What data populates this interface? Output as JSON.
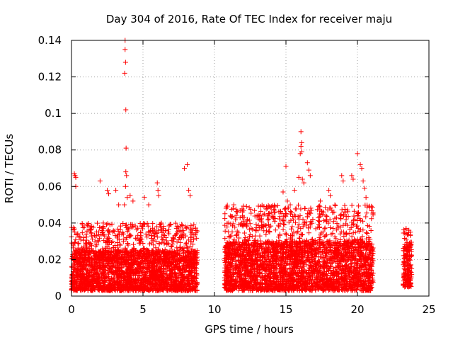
{
  "chart_data": {
    "type": "scatter",
    "title": "Day 304 of 2016, Rate Of TEC Index for receiver maju",
    "xlabel": "GPS time / hours",
    "ylabel": "ROTI / TECUs",
    "xlim": [
      0,
      25
    ],
    "ylim": [
      0,
      0.14
    ],
    "xticks": [
      0,
      5,
      10,
      15,
      20,
      25
    ],
    "xtick_labels": [
      "0",
      "5",
      "10",
      "15",
      "20",
      "25"
    ],
    "yticks": [
      0,
      0.02,
      0.04,
      0.06,
      0.08,
      0.1,
      0.12,
      0.14
    ],
    "ytick_labels": [
      "0",
      "0.02",
      "0.04",
      "0.06",
      "0.08",
      "0.1",
      "0.12",
      "0.14"
    ],
    "grid": true,
    "marker": "+",
    "color": "#ff0000",
    "series": [
      {
        "name": "ROTI",
        "segments": [
          {
            "x_range": [
              0,
              8.8
            ],
            "typical_range": [
              0.003,
              0.025
            ],
            "upper_envelope": 0.04
          },
          {
            "x_range": [
              10.7,
              21.1
            ],
            "typical_range": [
              0.003,
              0.03
            ],
            "upper_envelope": 0.05
          },
          {
            "x_range": [
              23.2,
              23.8
            ],
            "typical_range": [
              0.005,
              0.03
            ],
            "upper_envelope": 0.037
          }
        ],
        "peaks": [
          {
            "x": 0.2,
            "y": 0.067
          },
          {
            "x": 0.25,
            "y": 0.066
          },
          {
            "x": 0.3,
            "y": 0.065
          },
          {
            "x": 0.3,
            "y": 0.06
          },
          {
            "x": 2.0,
            "y": 0.063
          },
          {
            "x": 2.5,
            "y": 0.058
          },
          {
            "x": 2.6,
            "y": 0.056
          },
          {
            "x": 3.1,
            "y": 0.058
          },
          {
            "x": 3.3,
            "y": 0.05
          },
          {
            "x": 3.75,
            "y": 0.14
          },
          {
            "x": 3.75,
            "y": 0.135
          },
          {
            "x": 3.78,
            "y": 0.128
          },
          {
            "x": 3.72,
            "y": 0.122
          },
          {
            "x": 3.8,
            "y": 0.102
          },
          {
            "x": 3.82,
            "y": 0.081
          },
          {
            "x": 3.8,
            "y": 0.068
          },
          {
            "x": 3.85,
            "y": 0.066
          },
          {
            "x": 3.78,
            "y": 0.06
          },
          {
            "x": 3.9,
            "y": 0.054
          },
          {
            "x": 3.7,
            "y": 0.05
          },
          {
            "x": 4.1,
            "y": 0.055
          },
          {
            "x": 4.3,
            "y": 0.052
          },
          {
            "x": 5.1,
            "y": 0.054
          },
          {
            "x": 5.4,
            "y": 0.05
          },
          {
            "x": 6.0,
            "y": 0.062
          },
          {
            "x": 6.05,
            "y": 0.058
          },
          {
            "x": 6.1,
            "y": 0.055
          },
          {
            "x": 7.9,
            "y": 0.07
          },
          {
            "x": 8.1,
            "y": 0.072
          },
          {
            "x": 8.2,
            "y": 0.058
          },
          {
            "x": 8.3,
            "y": 0.055
          },
          {
            "x": 11.3,
            "y": 0.048
          },
          {
            "x": 11.6,
            "y": 0.046
          },
          {
            "x": 12.3,
            "y": 0.042
          },
          {
            "x": 13.5,
            "y": 0.045
          },
          {
            "x": 14.0,
            "y": 0.046
          },
          {
            "x": 14.8,
            "y": 0.057
          },
          {
            "x": 15.0,
            "y": 0.071
          },
          {
            "x": 15.1,
            "y": 0.052
          },
          {
            "x": 15.3,
            "y": 0.05
          },
          {
            "x": 15.6,
            "y": 0.058
          },
          {
            "x": 15.9,
            "y": 0.065
          },
          {
            "x": 16.05,
            "y": 0.09
          },
          {
            "x": 16.1,
            "y": 0.084
          },
          {
            "x": 16.05,
            "y": 0.082
          },
          {
            "x": 16.1,
            "y": 0.079
          },
          {
            "x": 16.0,
            "y": 0.078
          },
          {
            "x": 16.15,
            "y": 0.064
          },
          {
            "x": 16.25,
            "y": 0.062
          },
          {
            "x": 16.5,
            "y": 0.073
          },
          {
            "x": 16.6,
            "y": 0.069
          },
          {
            "x": 16.7,
            "y": 0.066
          },
          {
            "x": 17.4,
            "y": 0.052
          },
          {
            "x": 18.0,
            "y": 0.058
          },
          {
            "x": 18.1,
            "y": 0.055
          },
          {
            "x": 18.9,
            "y": 0.066
          },
          {
            "x": 19.0,
            "y": 0.063
          },
          {
            "x": 19.6,
            "y": 0.066
          },
          {
            "x": 19.7,
            "y": 0.064
          },
          {
            "x": 20.0,
            "y": 0.078
          },
          {
            "x": 20.2,
            "y": 0.072
          },
          {
            "x": 20.3,
            "y": 0.07
          },
          {
            "x": 20.4,
            "y": 0.063
          },
          {
            "x": 20.5,
            "y": 0.059
          },
          {
            "x": 20.6,
            "y": 0.054
          },
          {
            "x": 23.4,
            "y": 0.037
          },
          {
            "x": 23.6,
            "y": 0.036
          },
          {
            "x": 23.7,
            "y": 0.035
          }
        ]
      }
    ]
  }
}
